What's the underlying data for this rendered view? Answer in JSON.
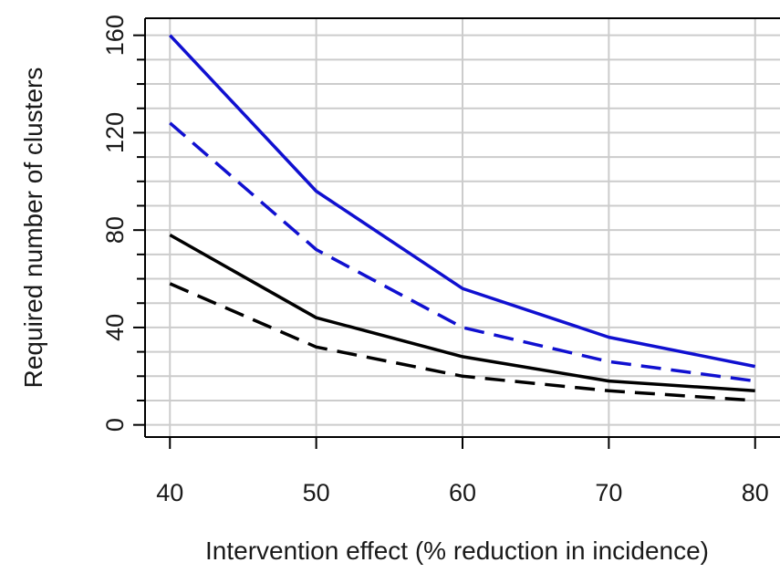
{
  "chart_data": {
    "type": "line",
    "title": "",
    "xlabel": "Intervention effect (% reduction in incidence)",
    "ylabel": "Required number of clusters",
    "x": [
      40,
      50,
      60,
      70,
      80
    ],
    "xlim": [
      38.3,
      81.7
    ],
    "ylim": [
      -5,
      167
    ],
    "x_ticks": [
      "40",
      "50",
      "60",
      "70",
      "80"
    ],
    "y_ticks": [
      "0",
      "40",
      "80",
      "120",
      "160"
    ],
    "y_minor_step": 10,
    "grid": true,
    "legend": "none",
    "series": [
      {
        "color": "#1010d0",
        "dash": "solid",
        "values": [
          160,
          96,
          56,
          36,
          24
        ]
      },
      {
        "color": "#1010d0",
        "dash": "dashed",
        "values": [
          124,
          72,
          40,
          26,
          18
        ]
      },
      {
        "color": "#000000",
        "dash": "solid",
        "values": [
          78,
          44,
          28,
          18,
          14
        ]
      },
      {
        "color": "#000000",
        "dash": "dashed",
        "values": [
          58,
          32,
          20,
          14,
          10
        ]
      }
    ],
    "grid_color": "#cccccc",
    "axis_color": "#000000"
  }
}
